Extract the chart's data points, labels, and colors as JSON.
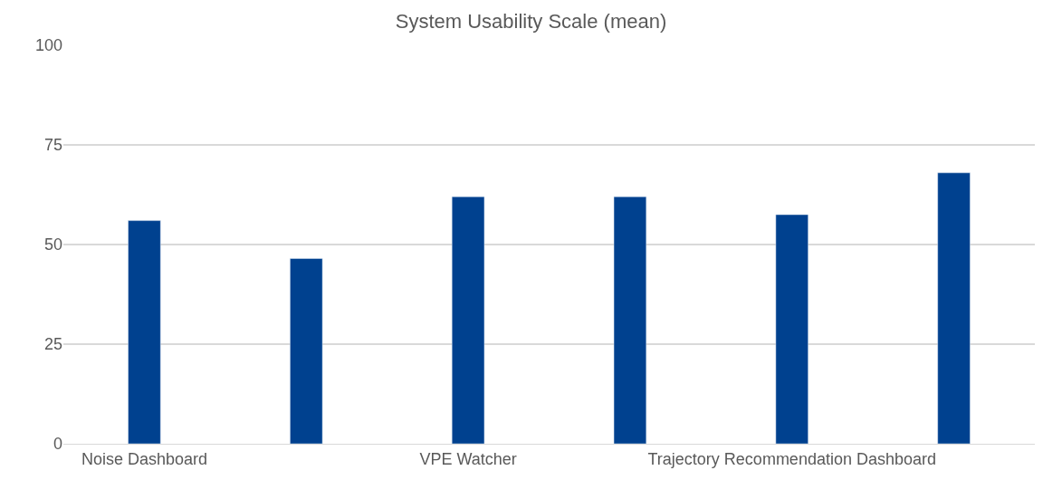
{
  "chart_data": {
    "type": "bar",
    "title": "System Usability Scale (mean)",
    "categories": [
      "Noise Dashboard",
      null,
      "VPE Watcher",
      null,
      "Trajectory Recommendation Dashboard",
      null
    ],
    "values": [
      56,
      46.5,
      62,
      62,
      57.5,
      68
    ],
    "color": "#00418f",
    "ylim": [
      0,
      100
    ],
    "yticks": [
      0,
      25,
      50,
      75,
      100
    ],
    "grid": "y"
  }
}
